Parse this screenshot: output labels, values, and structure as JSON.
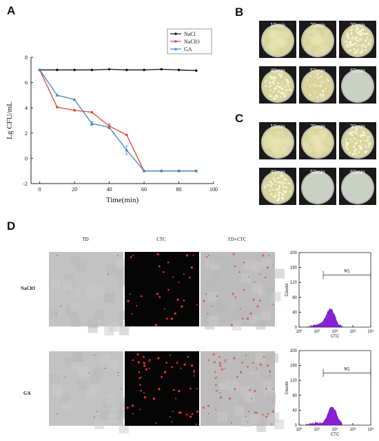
{
  "panels": {
    "a": "A",
    "b": "B",
    "c": "C",
    "d": "D"
  },
  "chart_data": {
    "type": "line",
    "xlabel": "Time(min)",
    "ylabel": "Lg CFU/mL",
    "xlim": [
      -5,
      100
    ],
    "ylim": [
      -2,
      8
    ],
    "xticks": [
      "0",
      "20",
      "40",
      "60",
      "80",
      "100"
    ],
    "yticks": [
      "-2",
      "0",
      "2",
      "4",
      "6",
      "8"
    ],
    "legend_position": "top-right",
    "series": [
      {
        "name": "NaCl",
        "color": "#111111",
        "marker": "circle",
        "x": [
          0,
          10,
          20,
          30,
          40,
          50,
          60,
          70,
          80,
          90
        ],
        "y": [
          7.0,
          7.0,
          7.0,
          7.0,
          7.05,
          7.0,
          7.0,
          7.05,
          7.0,
          6.95
        ]
      },
      {
        "name": "NaClO",
        "color": "#e0452c",
        "marker": "circle",
        "x": [
          0,
          10,
          20,
          30,
          40,
          50,
          60,
          70,
          80,
          90
        ],
        "y": [
          7.0,
          4.05,
          3.8,
          3.65,
          2.55,
          1.85,
          -1.0,
          -1.0,
          -1.0,
          -1.0
        ]
      },
      {
        "name": "GA",
        "color": "#3a85c8",
        "marker": "triangle",
        "x": [
          0,
          10,
          20,
          30,
          40,
          50,
          60,
          70,
          80,
          90
        ],
        "y": [
          7.0,
          5.0,
          4.65,
          2.75,
          2.45,
          0.65,
          -1.0,
          -1.0,
          -1.0,
          -1.0
        ]
      }
    ]
  },
  "plates": {
    "b": [
      {
        "label": "10min",
        "colonies": "lawn"
      },
      {
        "label": "20min",
        "colonies": "lawn"
      },
      {
        "label": "30min",
        "colonies": "dense"
      },
      {
        "label": "40min",
        "colonies": "many"
      },
      {
        "label": "50min",
        "colonies": "few"
      },
      {
        "label": "60min",
        "colonies": "none"
      }
    ],
    "c": [
      {
        "label": "10min",
        "colonies": "lawn"
      },
      {
        "label": "20min",
        "colonies": "lawn"
      },
      {
        "label": "30min",
        "colonies": "many"
      },
      {
        "label": "40min",
        "colonies": "many"
      },
      {
        "label": "50min",
        "colonies": "none"
      },
      {
        "label": "60min",
        "colonies": "none"
      }
    ]
  },
  "microscopy": {
    "columns": [
      "TD",
      "CTC",
      "TD+CTC"
    ],
    "rows": [
      "NaClO",
      "GA"
    ]
  },
  "histograms": [
    {
      "ylabel": "Counts",
      "xlabel": "CTC",
      "gate": "M1",
      "yticks": [
        "0",
        "40",
        "80",
        "120",
        "160",
        "200"
      ],
      "xticks": [
        "10⁰",
        "10¹",
        "10²",
        "10³",
        "10⁴"
      ]
    },
    {
      "ylabel": "Counts",
      "xlabel": "CTC",
      "gate": "M1",
      "yticks": [
        "0",
        "40",
        "80",
        "120",
        "160",
        "200"
      ],
      "xticks": [
        "10⁰",
        "10¹",
        "10²",
        "10³",
        "10⁴"
      ]
    }
  ]
}
